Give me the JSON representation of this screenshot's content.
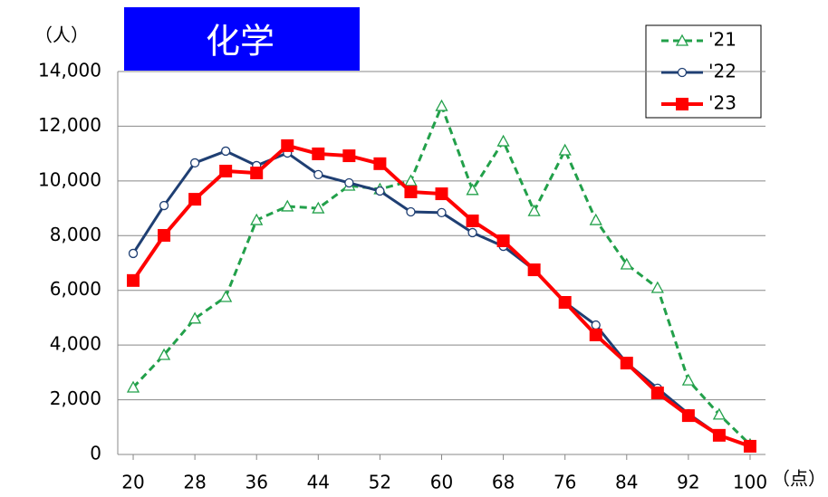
{
  "chart_data": {
    "type": "line",
    "title": "化学",
    "y_unit": "（人）",
    "x_unit": "（点）",
    "x": [
      20,
      24,
      28,
      32,
      36,
      40,
      44,
      48,
      52,
      56,
      60,
      64,
      68,
      72,
      76,
      80,
      84,
      88,
      92,
      96,
      100
    ],
    "xlim": [
      18,
      102
    ],
    "xticks": [
      20,
      28,
      36,
      44,
      52,
      60,
      68,
      76,
      84,
      92,
      100
    ],
    "ylim": [
      0,
      14000
    ],
    "yticks": [
      0,
      {
        "value": 2000,
        "label": "2,000"
      },
      {
        "value": 4000,
        "label": "4,000"
      },
      {
        "value": 6000,
        "label": "6,000"
      },
      {
        "value": 8000,
        "label": "8,000"
      },
      {
        "value": 10000,
        "label": "10,000"
      },
      {
        "value": 12000,
        "label": "12,000"
      },
      {
        "value": 14000,
        "label": "14,000"
      }
    ],
    "grid": true,
    "legend": "upper right",
    "series": [
      {
        "name": "'21",
        "color": "#22a04a",
        "marker": "triangle",
        "dashed": true,
        "values": [
          2450,
          3640,
          4970,
          5760,
          8570,
          9070,
          9000,
          9830,
          9700,
          10000,
          12740,
          9670,
          11450,
          8900,
          11120,
          8570,
          6950,
          6090,
          2710,
          1460,
          360
        ]
      },
      {
        "name": "'22",
        "color": "#1f3f73",
        "marker": "circle",
        "dashed": false,
        "values": [
          7350,
          9100,
          10660,
          11090,
          10560,
          11020,
          10230,
          9930,
          9630,
          8870,
          8840,
          8110,
          7610,
          6750,
          5560,
          4730,
          3340,
          2420,
          1490,
          700,
          300
        ]
      },
      {
        "name": "'23",
        "color": "#ff0000",
        "marker": "square",
        "dashed": false,
        "values": [
          6360,
          8010,
          9330,
          10360,
          10290,
          11290,
          10990,
          10920,
          10630,
          9600,
          9530,
          8540,
          7810,
          6750,
          5560,
          4370,
          3340,
          2250,
          1420,
          700,
          300
        ]
      }
    ]
  }
}
